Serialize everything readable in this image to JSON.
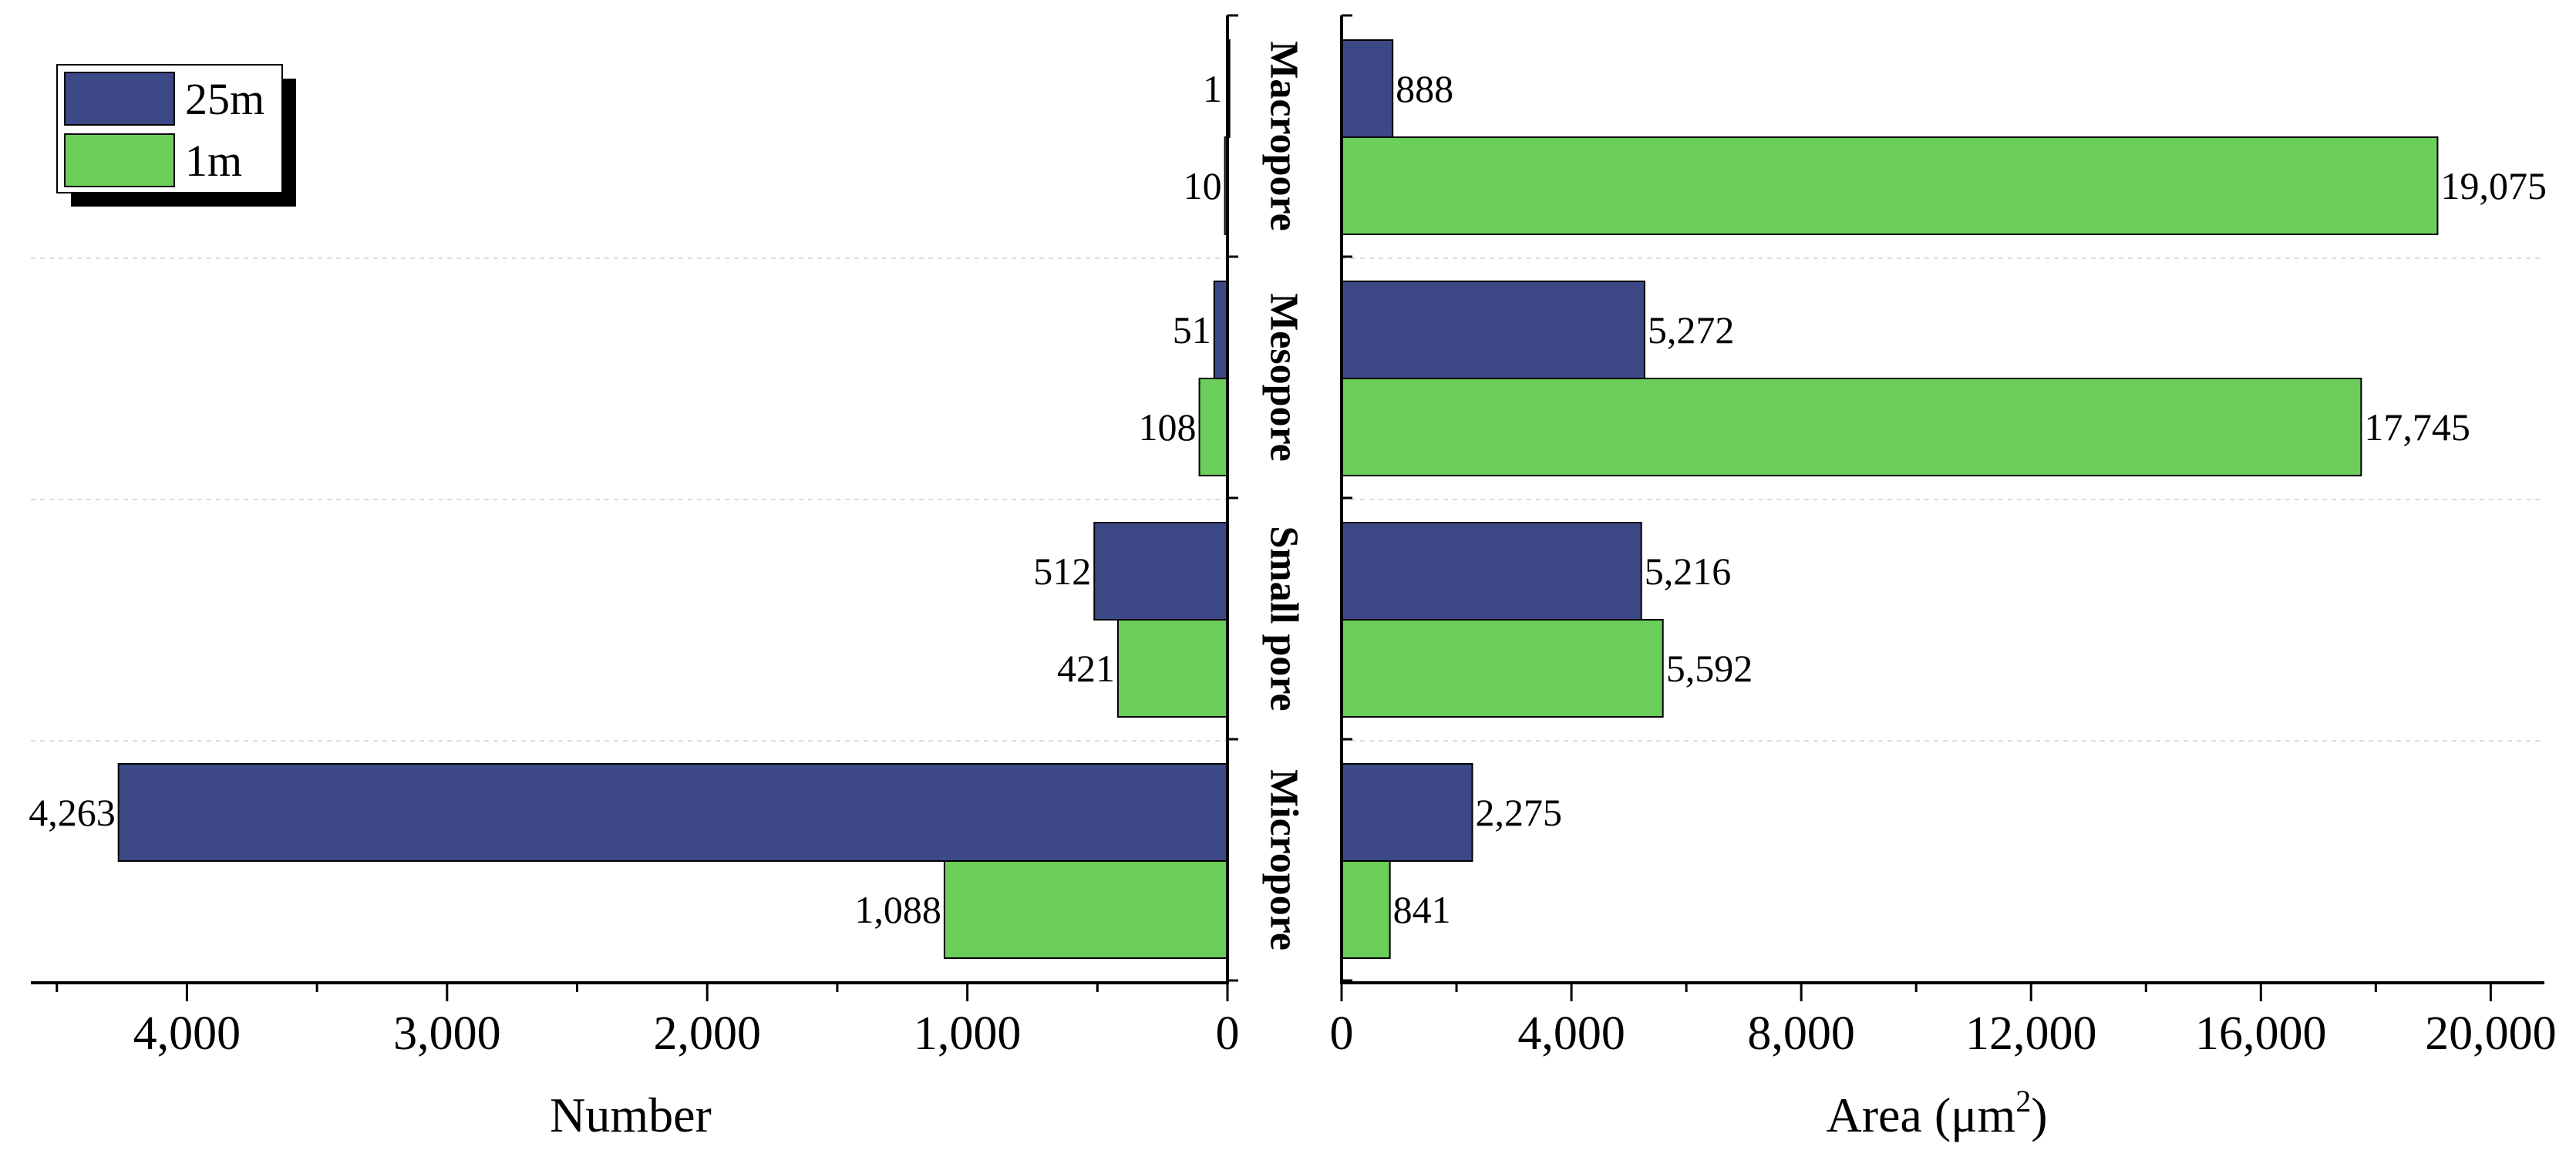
{
  "chart_data": {
    "type": "bar",
    "orientation": "horizontal",
    "layout": "back-to-back",
    "categories": [
      "Macropore",
      "Mesopore",
      "Small pore",
      "Micropore"
    ],
    "series": [
      {
        "name": "25m",
        "color": "#3d4887"
      },
      {
        "name": "1m",
        "color": "#6bcd5a"
      }
    ],
    "panels": [
      {
        "id": "number",
        "xlabel": "Number",
        "direction": "reversed",
        "xlim": [
          0,
          4600
        ],
        "ticks": [
          0,
          1000,
          2000,
          3000,
          4000
        ],
        "tick_labels": [
          "0",
          "1,000",
          "2,000",
          "3,000",
          "4,000"
        ],
        "values": {
          "25m": [
            1,
            51,
            512,
            4263
          ],
          "1m": [
            10,
            108,
            421,
            1088
          ]
        },
        "value_labels": {
          "25m": [
            "1",
            "51",
            "512",
            "4,263"
          ],
          "1m": [
            "10",
            "108",
            "421",
            "1,088"
          ]
        }
      },
      {
        "id": "area",
        "xlabel_prefix": "Area (μm",
        "xlabel_sup": "2",
        "xlabel_suffix": ")",
        "direction": "normal",
        "xlim": [
          0,
          20800
        ],
        "ticks": [
          0,
          4000,
          8000,
          12000,
          16000,
          20000
        ],
        "tick_labels": [
          "0",
          "4,000",
          "8,000",
          "12,000",
          "16,000",
          "20,000"
        ],
        "values": {
          "25m": [
            888,
            5272,
            5216,
            2275
          ],
          "1m": [
            19075,
            17745,
            5592,
            841
          ]
        },
        "value_labels": {
          "25m": [
            "888",
            "5,272",
            "5,216",
            "2,275"
          ],
          "1m": [
            "19,075",
            "17,745",
            "5,592",
            "841"
          ]
        }
      }
    ],
    "legend": {
      "position": "top-left",
      "entries": [
        "25m",
        "1m"
      ]
    }
  }
}
